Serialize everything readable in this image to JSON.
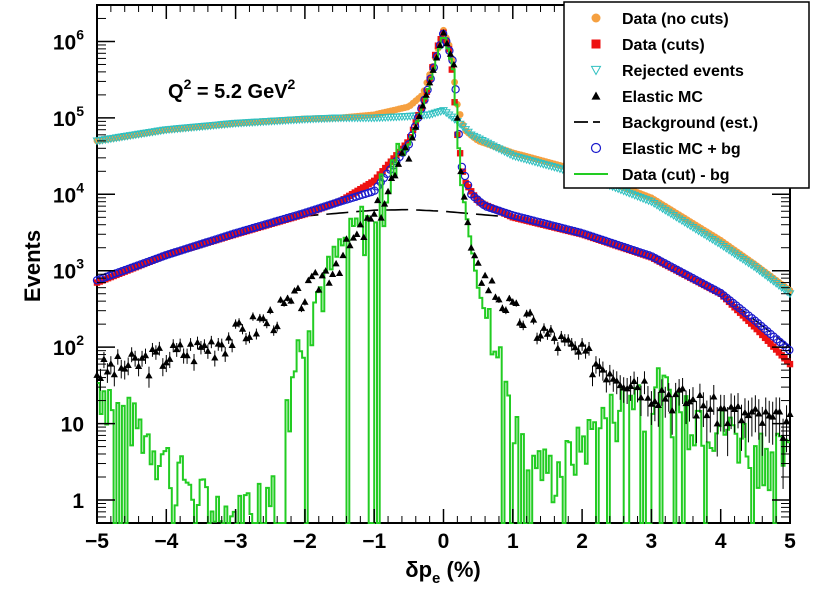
{
  "chart_data": {
    "type": "scatter",
    "title": "",
    "xlabel": "δp_e (%)",
    "xlabel_main": "δp",
    "xlabel_sub": "e",
    "xlabel_tail": " (%)",
    "ylabel": "Events",
    "xlim": [
      -5,
      5
    ],
    "ylim": [
      0.5,
      3000000
    ],
    "yscale": "log",
    "x_ticks": [
      -5,
      -4,
      -3,
      -2,
      -1,
      0,
      1,
      2,
      3,
      4,
      5
    ],
    "x_tick_labels": [
      "−5",
      "−4",
      "−3",
      "−2",
      "−1",
      "0",
      "1",
      "2",
      "3",
      "4",
      "5"
    ],
    "y_ticks": [
      {
        "value": 1,
        "base": "1",
        "exp": ""
      },
      {
        "value": 10,
        "base": "10",
        "exp": ""
      },
      {
        "value": 100,
        "base": "10",
        "exp": "2"
      },
      {
        "value": 1000,
        "base": "10",
        "exp": "3"
      },
      {
        "value": 10000,
        "base": "10",
        "exp": "4"
      },
      {
        "value": 100000,
        "base": "10",
        "exp": "5"
      },
      {
        "value": 1000000,
        "base": "10",
        "exp": "6"
      }
    ],
    "annotation": {
      "text": "Q² = 5.2 GeV²",
      "q": "Q",
      "q_exp": "2",
      "mid": " = 5.2 GeV",
      "unit_exp": "2"
    },
    "legend": {
      "position": "top-right",
      "entries": [
        {
          "label": "Data (no cuts)",
          "marker": "circle-filled",
          "color": "#f5a040"
        },
        {
          "label": "Data (cuts)",
          "marker": "square-filled",
          "color": "#ee1111"
        },
        {
          "label": "Rejected events",
          "marker": "triangle-down-open",
          "color": "#30c0c0"
        },
        {
          "label": "Elastic MC",
          "marker": "triangle-up-filled",
          "color": "#000000"
        },
        {
          "label": "Background (est.)",
          "marker": "dashed-line",
          "color": "#000000"
        },
        {
          "label": "Elastic MC + bg",
          "marker": "circle-open",
          "color": "#1a1acc"
        },
        {
          "label": "Data (cut) - bg",
          "marker": "line",
          "color": "#22cc22"
        }
      ]
    },
    "series": [
      {
        "name": "Data (no cuts)",
        "color": "#f5a040",
        "marker": "circle-filled",
        "points": [
          [
            -5,
            50000
          ],
          [
            -4,
            70000
          ],
          [
            -3,
            85000
          ],
          [
            -2,
            97000
          ],
          [
            -1.5,
            100000
          ],
          [
            -1,
            110000
          ],
          [
            -0.5,
            140000
          ],
          [
            -0.3,
            200000
          ],
          [
            -0.15,
            500000
          ],
          [
            0,
            1400000
          ],
          [
            0.1,
            800000
          ],
          [
            0.2,
            150000
          ],
          [
            0.3,
            70000
          ],
          [
            0.5,
            50000
          ],
          [
            1,
            35000
          ],
          [
            2,
            20000
          ],
          [
            3,
            9000
          ],
          [
            4,
            2500
          ],
          [
            4.5,
            1200
          ],
          [
            5,
            550
          ]
        ]
      },
      {
        "name": "Data (cuts)",
        "color": "#ee1111",
        "marker": "square-filled",
        "points": [
          [
            -5,
            700
          ],
          [
            -4,
            1600
          ],
          [
            -3,
            3000
          ],
          [
            -2,
            5500
          ],
          [
            -1.5,
            8000
          ],
          [
            -1,
            15000
          ],
          [
            -0.5,
            50000
          ],
          [
            -0.25,
            200000
          ],
          [
            -0.1,
            800000
          ],
          [
            0,
            1300000
          ],
          [
            0.1,
            700000
          ],
          [
            0.2,
            60000
          ],
          [
            0.3,
            15000
          ],
          [
            0.5,
            8000
          ],
          [
            1,
            5000
          ],
          [
            2,
            3000
          ],
          [
            3,
            1500
          ],
          [
            4,
            500
          ],
          [
            4.5,
            180
          ],
          [
            5,
            60
          ]
        ]
      },
      {
        "name": "Rejected events",
        "color": "#30c0c0",
        "marker": "triangle-down-open",
        "points": [
          [
            -5,
            50000
          ],
          [
            -4,
            70000
          ],
          [
            -3,
            85000
          ],
          [
            -2,
            96000
          ],
          [
            -1.5,
            100000
          ],
          [
            -1,
            100000
          ],
          [
            -0.5,
            105000
          ],
          [
            -0.2,
            110000
          ],
          [
            0,
            125000
          ],
          [
            0.2,
            90000
          ],
          [
            0.4,
            60000
          ],
          [
            1,
            32000
          ],
          [
            2,
            18000
          ],
          [
            3,
            8000
          ],
          [
            4,
            2200
          ],
          [
            4.5,
            1100
          ],
          [
            5,
            500
          ]
        ]
      },
      {
        "name": "Elastic MC",
        "color": "#000000",
        "marker": "triangle-up-filled",
        "points": [
          [
            -5,
            50
          ],
          [
            -4.5,
            60
          ],
          [
            -4,
            80
          ],
          [
            -3.5,
            100
          ],
          [
            -3,
            150
          ],
          [
            -2.5,
            250
          ],
          [
            -2,
            500
          ],
          [
            -1.5,
            1500
          ],
          [
            -1,
            5000
          ],
          [
            -0.5,
            40000
          ],
          [
            -0.25,
            200000
          ],
          [
            0,
            1300000
          ],
          [
            0.15,
            500000
          ],
          [
            0.25,
            20000
          ],
          [
            0.4,
            2000
          ],
          [
            0.6,
            800
          ],
          [
            1,
            300
          ],
          [
            1.5,
            150
          ],
          [
            2,
            80
          ],
          [
            3,
            30
          ],
          [
            4,
            15
          ],
          [
            5,
            10
          ]
        ]
      },
      {
        "name": "Background (est.)",
        "color": "#000000",
        "marker": "dashed-line",
        "points": [
          [
            -5,
            700
          ],
          [
            -4,
            1500
          ],
          [
            -3,
            3000
          ],
          [
            -2,
            5200
          ],
          [
            -1,
            6200
          ],
          [
            -0.5,
            6300
          ],
          [
            0,
            6000
          ],
          [
            1,
            5000
          ],
          [
            2,
            3000
          ],
          [
            3,
            1500
          ],
          [
            4,
            500
          ],
          [
            5,
            100
          ]
        ]
      },
      {
        "name": "Elastic MC + bg",
        "color": "#1a1acc",
        "marker": "circle-open",
        "points": [
          [
            -5,
            750
          ],
          [
            -4,
            1600
          ],
          [
            -3,
            3100
          ],
          [
            -2,
            5700
          ],
          [
            -1.5,
            8000
          ],
          [
            -1,
            11000
          ],
          [
            -0.5,
            45000
          ],
          [
            -0.25,
            200000
          ],
          [
            0,
            1300000
          ],
          [
            0.15,
            500000
          ],
          [
            0.25,
            25000
          ],
          [
            0.4,
            10000
          ],
          [
            0.6,
            7000
          ],
          [
            1,
            5300
          ],
          [
            2,
            3100
          ],
          [
            3,
            1550
          ],
          [
            4,
            510
          ],
          [
            4.5,
            220
          ],
          [
            5,
            90
          ]
        ]
      },
      {
        "name": "Data (cut) - bg",
        "color": "#22cc22",
        "marker": "line",
        "points": [
          [
            -5,
            30
          ],
          [
            -4.5,
            10
          ],
          [
            -4,
            3
          ],
          [
            -3.5,
            1
          ],
          [
            -3,
            0.5
          ],
          [
            -2.5,
            2
          ],
          [
            -2.2,
            30
          ],
          [
            -2,
            200
          ],
          [
            -1.5,
            1500
          ],
          [
            -1,
            6000
          ],
          [
            -0.5,
            45000
          ],
          [
            -0.25,
            190000
          ],
          [
            0,
            1300000
          ],
          [
            0.15,
            400000
          ],
          [
            0.25,
            15000
          ],
          [
            0.5,
            600
          ],
          [
            0.8,
            60
          ],
          [
            1,
            15
          ],
          [
            1.3,
            3
          ],
          [
            1.6,
            2
          ],
          [
            2,
            5
          ],
          [
            2.5,
            15
          ],
          [
            3,
            30
          ],
          [
            3.5,
            15
          ],
          [
            4,
            8
          ],
          [
            4.5,
            5
          ],
          [
            5,
            3
          ]
        ]
      }
    ]
  }
}
